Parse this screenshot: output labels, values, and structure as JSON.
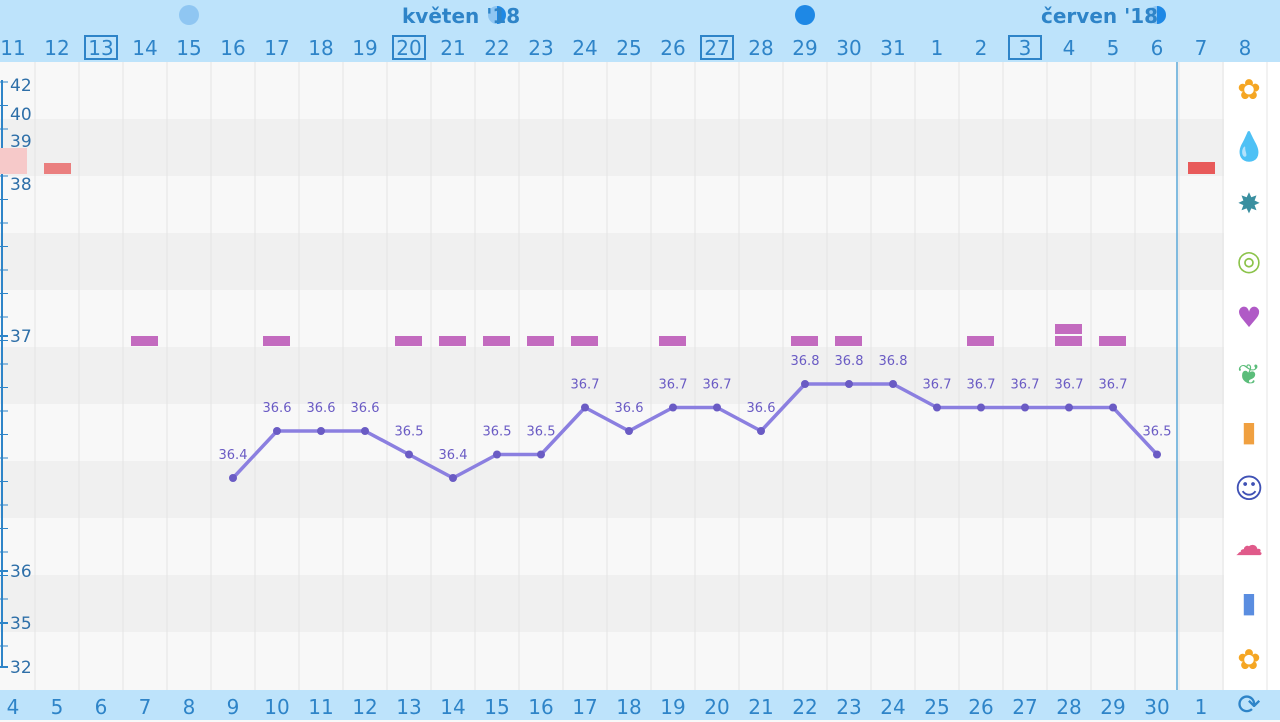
{
  "header": {
    "month_labels": [
      "květen '18",
      "červen '18"
    ]
  },
  "chart_data": {
    "type": "line",
    "title": "",
    "xlabel": "",
    "ylabel": "",
    "ylim": [
      35.4,
      37.5
    ],
    "y_tick_labels": [
      "42",
      "40",
      "39",
      "38",
      "37",
      "36",
      "35",
      "32"
    ],
    "top_day_labels": [
      "11",
      "12",
      "13",
      "14",
      "15",
      "16",
      "17",
      "18",
      "19",
      "20",
      "21",
      "22",
      "23",
      "24",
      "25",
      "26",
      "27",
      "28",
      "29",
      "30",
      "31",
      "1",
      "2",
      "3",
      "4",
      "5",
      "6",
      "7",
      "8"
    ],
    "boxed_top_days": [
      "13",
      "20",
      "27",
      "3"
    ],
    "bottom_cycle_day_labels": [
      "4",
      "5",
      "6",
      "7",
      "8",
      "9",
      "10",
      "11",
      "12",
      "13",
      "14",
      "15",
      "16",
      "17",
      "18",
      "19",
      "20",
      "21",
      "22",
      "23",
      "24",
      "25",
      "26",
      "27",
      "28",
      "29",
      "30",
      "1"
    ],
    "series": [
      {
        "values": [
          null,
          null,
          null,
          null,
          null,
          36.4,
          36.6,
          36.6,
          36.6,
          36.5,
          36.4,
          36.5,
          36.5,
          36.7,
          36.6,
          36.7,
          36.7,
          36.6,
          36.8,
          36.8,
          36.8,
          36.7,
          36.7,
          36.7,
          36.7,
          36.7,
          36.5,
          null,
          null
        ],
        "value_labels": [
          "",
          "",
          "",
          "",
          "",
          "36.4",
          "36.6",
          "36.6",
          "36.6",
          "36.5",
          "36.4",
          "36.5",
          "36.5",
          "36.7",
          "36.6",
          "36.7",
          "36.7",
          "36.6",
          "36.8",
          "36.8",
          "36.8",
          "36.7",
          "36.7",
          "36.7",
          "36.7",
          "36.7",
          "36.5",
          "",
          ""
        ],
        "color": "#8b7fe0"
      }
    ],
    "marker_counts": [
      0,
      0,
      0,
      1,
      0,
      0,
      1,
      0,
      0,
      1,
      1,
      1,
      1,
      1,
      0,
      1,
      0,
      0,
      1,
      1,
      0,
      0,
      1,
      0,
      2,
      1,
      0,
      0,
      0
    ],
    "marker_color": "#c36bbf",
    "moon_phases": [
      {
        "day_index": 4,
        "phase": "light-full"
      },
      {
        "day_index": 11,
        "phase": "half"
      },
      {
        "day_index": 18,
        "phase": "dark-full"
      },
      {
        "day_index": 26,
        "phase": "half"
      }
    ],
    "grid": true,
    "today_index": 27,
    "colors": {
      "accent": "#2e84c8",
      "line": "#8b7fe0",
      "marker": "#c36bbf",
      "band": "#f0f0f0",
      "period": "#e85a5a"
    }
  },
  "side_icons": [
    {
      "name": "flower-icon",
      "glyph": "✿",
      "color": "#f5a623"
    },
    {
      "name": "drop-icon",
      "glyph": "💧",
      "color": "#e53935"
    },
    {
      "name": "splash-icon",
      "glyph": "✸",
      "color": "#3a8fa0"
    },
    {
      "name": "rings-icon",
      "glyph": "◎",
      "color": "#8bc34a"
    },
    {
      "name": "heart-icon",
      "glyph": "♥",
      "color": "#b05ac6"
    },
    {
      "name": "leaf-icon",
      "glyph": "❦",
      "color": "#5bbd7a"
    },
    {
      "name": "bottle-icon",
      "glyph": "▮",
      "color": "#f0a040"
    },
    {
      "name": "smiley-icon",
      "glyph": "☺",
      "color": "#3f51b5"
    },
    {
      "name": "head-pain-icon",
      "glyph": "☁",
      "color": "#e05a8a"
    },
    {
      "name": "document-icon",
      "glyph": "▮",
      "color": "#5a8de0"
    },
    {
      "name": "flower-alert-icon",
      "glyph": "✿",
      "color": "#f5a623"
    },
    {
      "name": "refresh-icon",
      "glyph": "⟳",
      "color": "#2e84c8"
    }
  ]
}
